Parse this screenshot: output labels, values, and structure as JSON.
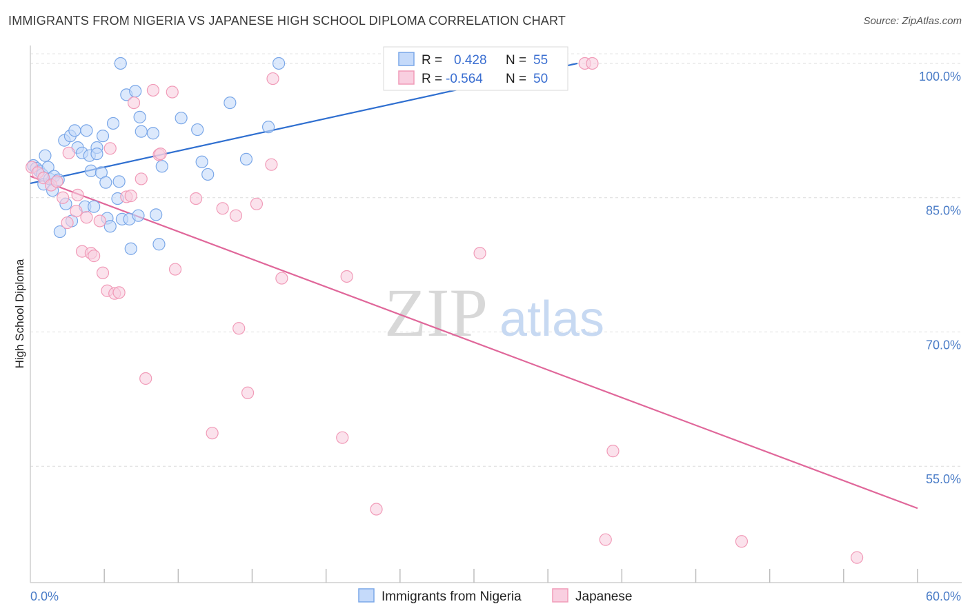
{
  "title": "IMMIGRANTS FROM NIGERIA VS JAPANESE HIGH SCHOOL DIPLOMA CORRELATION CHART",
  "source": "Source: ZipAtlas.com",
  "watermark": {
    "zip": "ZIP",
    "atlas": "atlas"
  },
  "chart_data": {
    "type": "scatter",
    "xlabel": "",
    "ylabel": "High School Diploma",
    "xlim": [
      0,
      60
    ],
    "ylim": [
      42,
      102
    ],
    "x_tick_labels": [
      {
        "value": 0,
        "label": "0.0%"
      },
      {
        "value": 60,
        "label": "60.0%"
      }
    ],
    "y_tick_labels": [
      {
        "value": 100,
        "label": "100.0%"
      },
      {
        "value": 85,
        "label": "85.0%"
      },
      {
        "value": 70,
        "label": "70.0%"
      },
      {
        "value": 55,
        "label": "55.0%"
      }
    ],
    "grid": true,
    "legend_position": "bottom",
    "stats_box": {
      "rows": [
        {
          "r_label": "R =",
          "r_value": "0.428",
          "n_label": "N =",
          "n_value": "55",
          "color": "#7aa7e8"
        },
        {
          "r_label": "R =",
          "r_value": "-0.564",
          "n_label": "N =",
          "n_value": "50",
          "color": "#f19bb8"
        }
      ]
    },
    "series": [
      {
        "name": "Immigrants from Nigeria",
        "color": "#7aa7e8",
        "fill": "#c5dafa",
        "trend": [
          [
            0,
            86.6
          ],
          [
            37,
            100
          ]
        ],
        "points": [
          [
            0.2,
            88.6
          ],
          [
            0.4,
            88.3
          ],
          [
            0.6,
            88.0
          ],
          [
            0.8,
            87.6
          ],
          [
            0.9,
            86.5
          ],
          [
            1.0,
            89.7
          ],
          [
            1.2,
            88.4
          ],
          [
            1.3,
            87.1
          ],
          [
            1.5,
            85.8
          ],
          [
            1.6,
            87.4
          ],
          [
            1.9,
            87.0
          ],
          [
            2.0,
            81.2
          ],
          [
            2.3,
            91.4
          ],
          [
            2.4,
            84.3
          ],
          [
            2.7,
            91.9
          ],
          [
            2.8,
            82.4
          ],
          [
            3.0,
            92.5
          ],
          [
            3.2,
            90.6
          ],
          [
            3.5,
            90.0
          ],
          [
            3.7,
            84.0
          ],
          [
            3.8,
            92.5
          ],
          [
            4.0,
            89.7
          ],
          [
            4.1,
            88.0
          ],
          [
            4.3,
            84.0
          ],
          [
            4.5,
            90.6
          ],
          [
            4.5,
            89.9
          ],
          [
            4.8,
            87.8
          ],
          [
            4.9,
            91.9
          ],
          [
            5.1,
            86.7
          ],
          [
            5.2,
            82.7
          ],
          [
            5.4,
            81.8
          ],
          [
            5.6,
            93.3
          ],
          [
            5.9,
            84.9
          ],
          [
            6.0,
            86.8
          ],
          [
            6.1,
            100.0
          ],
          [
            6.2,
            82.6
          ],
          [
            6.5,
            96.5
          ],
          [
            6.7,
            82.6
          ],
          [
            6.8,
            79.3
          ],
          [
            7.1,
            96.9
          ],
          [
            7.3,
            83.0
          ],
          [
            7.4,
            94.0
          ],
          [
            7.5,
            92.4
          ],
          [
            8.3,
            92.2
          ],
          [
            8.5,
            83.1
          ],
          [
            8.7,
            79.8
          ],
          [
            8.9,
            88.5
          ],
          [
            10.2,
            93.9
          ],
          [
            11.3,
            92.6
          ],
          [
            11.6,
            89.0
          ],
          [
            12.0,
            87.6
          ],
          [
            13.5,
            95.6
          ],
          [
            14.6,
            89.3
          ],
          [
            16.1,
            92.9
          ],
          [
            16.8,
            100.0
          ]
        ]
      },
      {
        "name": "Japanese",
        "color": "#f19bb8",
        "fill": "#f9cfe0",
        "trend": [
          [
            0,
            87.4
          ],
          [
            60,
            50.3
          ]
        ],
        "points": [
          [
            0.1,
            88.4
          ],
          [
            0.5,
            87.8
          ],
          [
            0.9,
            87.2
          ],
          [
            1.4,
            86.4
          ],
          [
            1.8,
            86.8
          ],
          [
            2.2,
            85.0
          ],
          [
            2.5,
            82.2
          ],
          [
            2.6,
            90.0
          ],
          [
            3.1,
            83.5
          ],
          [
            3.2,
            85.3
          ],
          [
            3.5,
            79.0
          ],
          [
            3.8,
            82.8
          ],
          [
            4.1,
            78.8
          ],
          [
            4.3,
            78.5
          ],
          [
            4.7,
            82.4
          ],
          [
            4.9,
            76.6
          ],
          [
            5.2,
            74.6
          ],
          [
            5.4,
            90.5
          ],
          [
            5.7,
            74.3
          ],
          [
            6.0,
            74.4
          ],
          [
            6.5,
            85.1
          ],
          [
            6.8,
            85.2
          ],
          [
            7.0,
            95.6
          ],
          [
            7.5,
            87.1
          ],
          [
            7.8,
            64.8
          ],
          [
            8.3,
            97.0
          ],
          [
            8.7,
            89.8
          ],
          [
            8.8,
            89.9
          ],
          [
            9.6,
            96.8
          ],
          [
            9.8,
            77.0
          ],
          [
            11.2,
            84.9
          ],
          [
            12.3,
            58.7
          ],
          [
            13.0,
            83.8
          ],
          [
            13.9,
            83.0
          ],
          [
            14.1,
            70.4
          ],
          [
            14.7,
            63.2
          ],
          [
            15.3,
            84.3
          ],
          [
            16.3,
            88.7
          ],
          [
            16.4,
            98.3
          ],
          [
            17.0,
            76.0
          ],
          [
            21.1,
            58.2
          ],
          [
            21.4,
            76.2
          ],
          [
            23.4,
            50.2
          ],
          [
            30.4,
            78.8
          ],
          [
            37.5,
            100.0
          ],
          [
            38.0,
            100.0
          ],
          [
            39.4,
            56.7
          ],
          [
            38.9,
            46.8
          ],
          [
            48.1,
            46.6
          ],
          [
            55.9,
            44.8
          ]
        ]
      }
    ]
  }
}
